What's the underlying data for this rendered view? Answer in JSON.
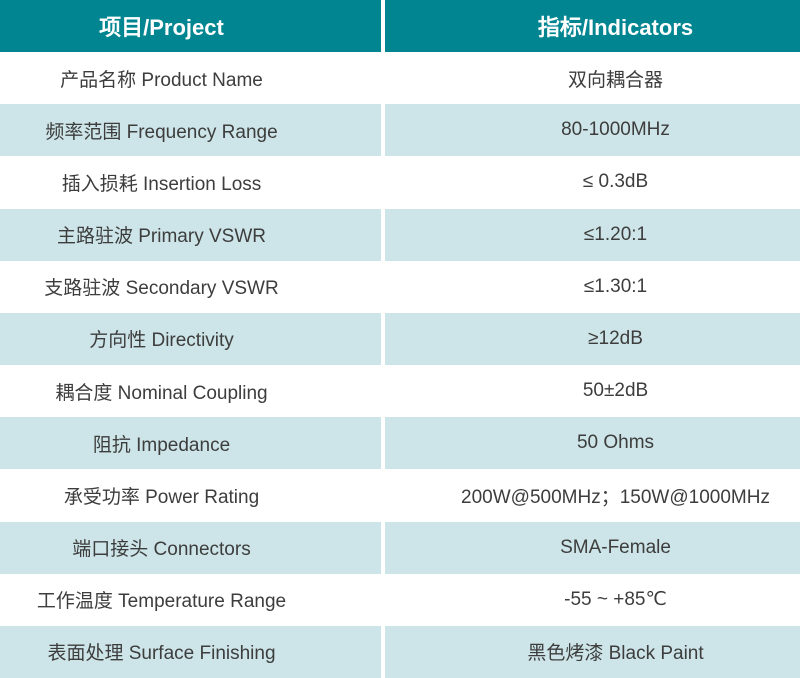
{
  "table": {
    "header": {
      "project": "项目/Project",
      "indicators": "指标/Indicators"
    },
    "rows": [
      {
        "project": "产品名称 Product Name",
        "indicator": "双向耦合器"
      },
      {
        "project": "频率范围 Frequency Range",
        "indicator": "80-1000MHz"
      },
      {
        "project": "插入损耗 Insertion Loss",
        "indicator": "≤ 0.3dB"
      },
      {
        "project": "主路驻波 Primary VSWR",
        "indicator": "≤1.20:1"
      },
      {
        "project": "支路驻波 Secondary VSWR",
        "indicator": "≤1.30:1"
      },
      {
        "project": "方向性 Directivity",
        "indicator": "≥12dB"
      },
      {
        "project": "耦合度 Nominal Coupling",
        "indicator": "50±2dB"
      },
      {
        "project": "阻抗 Impedance",
        "indicator": "50 Ohms"
      },
      {
        "project": "承受功率 Power Rating",
        "indicator": "200W@500MHz；150W@1000MHz"
      },
      {
        "project": "端口接头 Connectors",
        "indicator": "SMA-Female"
      },
      {
        "project": "工作温度 Temperature Range",
        "indicator": "-55 ~ +85℃"
      },
      {
        "project": "表面处理 Surface Finishing",
        "indicator": "黑色烤漆 Black Paint"
      }
    ],
    "colors": {
      "header_bg": "#008591",
      "alt_row_bg": "#CDE5E8",
      "header_text": "#FFFFFF",
      "body_text": "#3D3D3D"
    }
  }
}
